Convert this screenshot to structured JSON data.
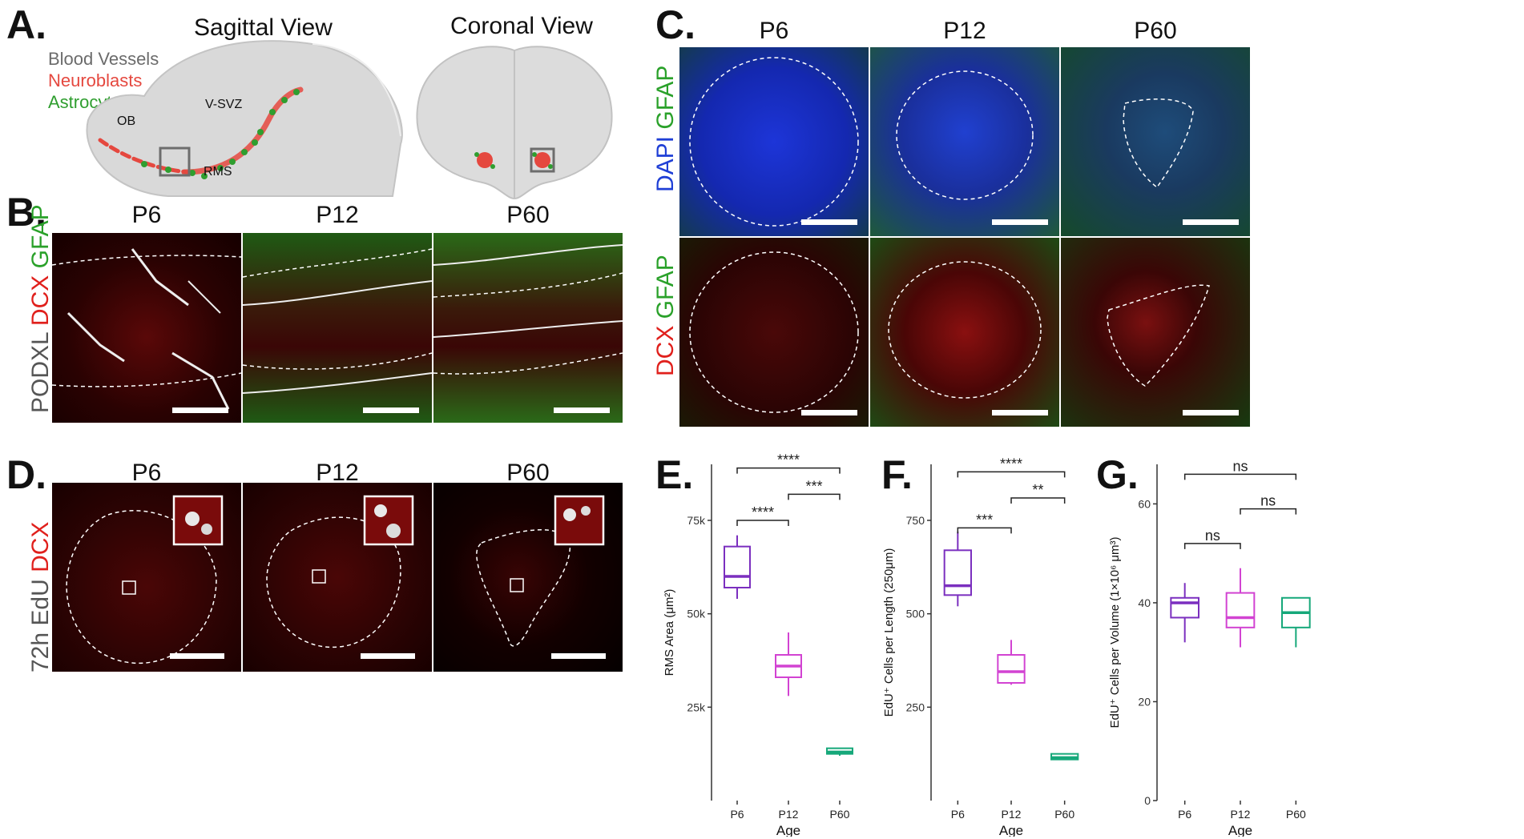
{
  "panelA": {
    "label": "A.",
    "sagittal_title": "Sagittal View",
    "coronal_title": "Coronal View",
    "legend": [
      {
        "text": "Blood Vessels",
        "color": "#6b6b6b"
      },
      {
        "text": "Neuroblasts",
        "color": "#e5483f"
      },
      {
        "text": "Astrocytes",
        "color": "#2f9e2f"
      }
    ],
    "ob_label": "OB",
    "vsvz_label": "V-SVZ",
    "rms_label": "RMS"
  },
  "panelB": {
    "label": "B.",
    "ages": [
      "P6",
      "P12",
      "P60"
    ],
    "stain_parts": [
      {
        "text": "PODXL",
        "color": "#555555"
      },
      {
        "text": "DCX",
        "color": "#e0201c"
      },
      {
        "text": "GFAP",
        "color": "#2aa12a"
      }
    ]
  },
  "panelC": {
    "label": "C.",
    "ages": [
      "P6",
      "P12",
      "P60"
    ],
    "row1_parts": [
      {
        "text": "DAPI",
        "color": "#1f3fd6"
      },
      {
        "text": "GFAP",
        "color": "#2aa12a"
      }
    ],
    "row2_parts": [
      {
        "text": "DCX",
        "color": "#e0201c"
      },
      {
        "text": "GFAP",
        "color": "#2aa12a"
      }
    ]
  },
  "panelD": {
    "label": "D.",
    "ages": [
      "P6",
      "P12",
      "P60"
    ],
    "stain_parts": [
      {
        "text": "72h EdU",
        "color": "#555555"
      },
      {
        "text": "DCX",
        "color": "#e0201c"
      }
    ]
  },
  "chart_data": [
    {
      "label": "E.",
      "type": "box",
      "xlabel": "Age",
      "ylabel": "RMS Area (μm²)",
      "categories": [
        "P6",
        "P12",
        "P60"
      ],
      "colors": [
        "#7b2fbf",
        "#d243d2",
        "#16a87a"
      ],
      "ylim": [
        0,
        90000
      ],
      "yticks": [
        25000,
        50000,
        75000
      ],
      "yticklabels": [
        "25k",
        "50k",
        "75k"
      ],
      "boxes": [
        {
          "min": 54000,
          "q1": 57000,
          "median": 60000,
          "q3": 68000,
          "max": 71000
        },
        {
          "min": 28000,
          "q1": 33000,
          "median": 36000,
          "q3": 39000,
          "max": 45000
        },
        {
          "min": 12000,
          "q1": 12500,
          "median": 13000,
          "q3": 14000,
          "max": 14000
        }
      ],
      "comparisons": [
        {
          "from": 0,
          "to": 1,
          "y": 75000,
          "label": "****"
        },
        {
          "from": 1,
          "to": 2,
          "y": 82000,
          "label": "***"
        },
        {
          "from": 0,
          "to": 2,
          "y": 89000,
          "label": "****"
        }
      ]
    },
    {
      "label": "F.",
      "type": "box",
      "xlabel": "Age",
      "ylabel": "EdU⁺ Cells per Length (250μm)",
      "categories": [
        "P6",
        "P12",
        "P60"
      ],
      "colors": [
        "#7b2fbf",
        "#d243d2",
        "#16a87a"
      ],
      "ylim": [
        0,
        900
      ],
      "yticks": [
        250,
        500,
        750
      ],
      "yticklabels": [
        "250",
        "500",
        "750"
      ],
      "boxes": [
        {
          "min": 520,
          "q1": 550,
          "median": 575,
          "q3": 670,
          "max": 720
        },
        {
          "min": 310,
          "q1": 315,
          "median": 345,
          "q3": 390,
          "max": 430
        },
        {
          "min": 110,
          "q1": 110,
          "median": 115,
          "q3": 125,
          "max": 125
        }
      ],
      "comparisons": [
        {
          "from": 0,
          "to": 1,
          "y": 730,
          "label": "***"
        },
        {
          "from": 1,
          "to": 2,
          "y": 810,
          "label": "**"
        },
        {
          "from": 0,
          "to": 2,
          "y": 880,
          "label": "****"
        }
      ]
    },
    {
      "label": "G.",
      "type": "box",
      "xlabel": "Age",
      "ylabel": "EdU⁺ Cells per Volume (1×10⁶ μm³)",
      "categories": [
        "P6",
        "P12",
        "P60"
      ],
      "colors": [
        "#7b2fbf",
        "#d243d2",
        "#16a87a"
      ],
      "ylim": [
        0,
        68
      ],
      "yticks": [
        0,
        20,
        40,
        60
      ],
      "yticklabels": [
        "0",
        "20",
        "40",
        "60"
      ],
      "boxes": [
        {
          "min": 32,
          "q1": 37,
          "median": 40,
          "q3": 41,
          "max": 44
        },
        {
          "min": 31,
          "q1": 35,
          "median": 37,
          "q3": 42,
          "max": 47
        },
        {
          "min": 31,
          "q1": 35,
          "median": 38,
          "q3": 41,
          "max": 41
        }
      ],
      "comparisons": [
        {
          "from": 0,
          "to": 1,
          "y": 52,
          "label": "ns"
        },
        {
          "from": 1,
          "to": 2,
          "y": 59,
          "label": "ns"
        },
        {
          "from": 0,
          "to": 2,
          "y": 66,
          "label": "ns"
        }
      ]
    }
  ]
}
